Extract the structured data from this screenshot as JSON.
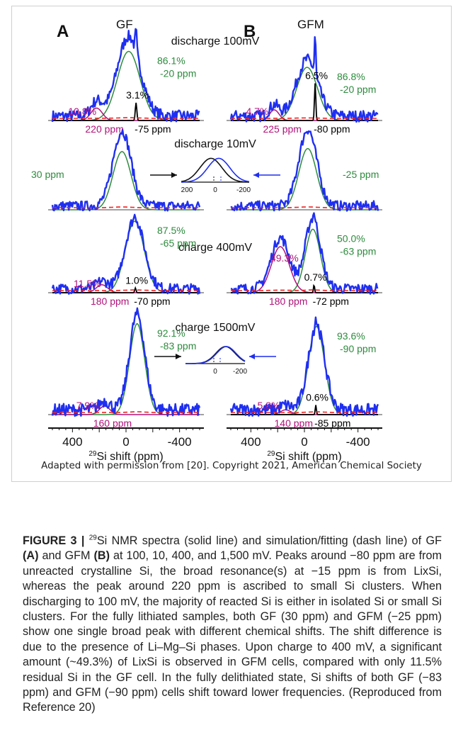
{
  "colors": {
    "experiment": "#1f2ff0",
    "fit_dash": "#ee2222",
    "lixsi_component": "#2e8b3e",
    "cluster_component": "#b0127a",
    "crystalline_component": "#000000",
    "caption_label": "#111111"
  },
  "figure": {
    "panel_a_label": "A",
    "panel_b_label": "B",
    "column_a_title": "GF",
    "column_b_title": "GFM",
    "inset_arrow_icon": "arrow-icon"
  },
  "chart_data": [
    {
      "type": "line",
      "panel": "A",
      "sample": "GF",
      "state": "discharge 100mV",
      "x_unit": "ppm",
      "xlim": [
        550,
        -550
      ],
      "components": [
        {
          "color": "lixsi",
          "center_ppm": -20,
          "width_ppm": 120,
          "relative_height": 0.78,
          "fraction_label": "86.1%",
          "shift_label": "-20 ppm"
        },
        {
          "color": "cluster",
          "center_ppm": 220,
          "width_ppm": 60,
          "relative_height": 0.14,
          "fraction_label": "10.8%",
          "shift_label": "220 ppm"
        },
        {
          "color": "crystalline",
          "center_ppm": -75,
          "width_ppm": 8,
          "relative_height": 0.2,
          "fraction_label": "3.1%",
          "shift_label": "-75 ppm"
        }
      ],
      "experiment_peak_height": 0.96
    },
    {
      "type": "line",
      "panel": "B",
      "sample": "GFM",
      "state": "discharge 100mV",
      "x_unit": "ppm",
      "xlim": [
        550,
        -550
      ],
      "components": [
        {
          "color": "lixsi",
          "center_ppm": -20,
          "width_ppm": 110,
          "relative_height": 0.6,
          "fraction_label": "86.8%",
          "shift_label": "-20 ppm"
        },
        {
          "color": "cluster",
          "center_ppm": 225,
          "width_ppm": 50,
          "relative_height": 0.12,
          "fraction_label": "4.7%",
          "shift_label": "225 ppm"
        },
        {
          "color": "crystalline",
          "center_ppm": -80,
          "width_ppm": 7,
          "relative_height": 0.42,
          "fraction_label": "6.5%",
          "shift_label": "-80 ppm"
        }
      ],
      "experiment_peak_height": 0.92
    },
    {
      "type": "line",
      "panel": "A",
      "sample": "GF",
      "state": "discharge 10mV",
      "x_unit": "ppm",
      "xlim": [
        550,
        -550
      ],
      "components": [
        {
          "color": "lixsi",
          "center_ppm": 30,
          "width_ppm": 95,
          "relative_height": 0.76,
          "fraction_label": "",
          "shift_label": "30 ppm"
        }
      ],
      "experiment_peak_height": 0.98
    },
    {
      "type": "line",
      "panel": "B",
      "sample": "GFM",
      "state": "discharge 10mV",
      "x_unit": "ppm",
      "xlim": [
        550,
        -550
      ],
      "components": [
        {
          "color": "lixsi",
          "center_ppm": -25,
          "width_ppm": 95,
          "relative_height": 0.8,
          "fraction_label": "",
          "shift_label": "-25 ppm"
        }
      ],
      "experiment_peak_height": 1.0
    },
    {
      "type": "line",
      "panel": "A",
      "sample": "GF",
      "state": "charge 400mV",
      "x_unit": "ppm",
      "xlim": [
        550,
        -550
      ],
      "components": [
        {
          "color": "lixsi",
          "center_ppm": -65,
          "width_ppm": 100,
          "relative_height": 0.9,
          "fraction_label": "87.5%",
          "shift_label": "-65 ppm"
        },
        {
          "color": "cluster",
          "center_ppm": 180,
          "width_ppm": 60,
          "relative_height": 0.1,
          "fraction_label": "11.5%",
          "shift_label": "180 ppm"
        },
        {
          "color": "crystalline",
          "center_ppm": -70,
          "width_ppm": 7,
          "relative_height": 0.06,
          "fraction_label": "1.0%",
          "shift_label": "-70 ppm"
        }
      ],
      "experiment_peak_height": 0.94
    },
    {
      "type": "line",
      "panel": "B",
      "sample": "GFM",
      "state": "charge 400mV",
      "x_unit": "ppm",
      "xlim": [
        550,
        -550
      ],
      "components": [
        {
          "color": "lixsi",
          "center_ppm": -63,
          "width_ppm": 80,
          "relative_height": 0.8,
          "fraction_label": "50.0%",
          "shift_label": "-63 ppm"
        },
        {
          "color": "cluster",
          "center_ppm": 180,
          "width_ppm": 95,
          "relative_height": 0.58,
          "fraction_label": "49.3%",
          "shift_label": "180 ppm"
        },
        {
          "color": "crystalline",
          "center_ppm": -72,
          "width_ppm": 6,
          "relative_height": 0.1,
          "fraction_label": "0.7%",
          "shift_label": "-72 ppm"
        }
      ],
      "experiment_peak_height": 0.98
    },
    {
      "type": "line",
      "panel": "A",
      "sample": "GF",
      "state": "charge 1500mV",
      "x_unit": "ppm",
      "xlim": [
        550,
        -550
      ],
      "components": [
        {
          "color": "lixsi",
          "center_ppm": -83,
          "width_ppm": 80,
          "relative_height": 0.95,
          "fraction_label": "92.1%",
          "shift_label": "-83 ppm"
        },
        {
          "color": "cluster",
          "center_ppm": 160,
          "width_ppm": 55,
          "relative_height": 0.09,
          "fraction_label": "7.9%",
          "shift_label": "160 ppm"
        }
      ],
      "experiment_peak_height": 1.0
    },
    {
      "type": "line",
      "panel": "B",
      "sample": "GFM",
      "state": "charge 1500mV",
      "x_unit": "ppm",
      "xlim": [
        550,
        -550
      ],
      "components": [
        {
          "color": "lixsi",
          "center_ppm": -90,
          "width_ppm": 85,
          "relative_height": 0.92,
          "fraction_label": "93.6%",
          "shift_label": "-90 ppm"
        },
        {
          "color": "cluster",
          "center_ppm": 140,
          "width_ppm": 55,
          "relative_height": 0.05,
          "fraction_label": "5.8%",
          "shift_label": "140 ppm"
        },
        {
          "color": "crystalline",
          "center_ppm": -85,
          "width_ppm": 6,
          "relative_height": 0.1,
          "fraction_label": "0.6%",
          "shift_label": "-85 ppm"
        }
      ],
      "experiment_peak_height": 0.98
    }
  ],
  "x_axis": {
    "tick_labels": [
      "400",
      "0",
      "-400"
    ],
    "tick_values": [
      400,
      0,
      -400
    ],
    "label_prefix": "29",
    "label_text": "Si shift (ppm)"
  },
  "insets": [
    {
      "state": "discharge 10mV",
      "tick_labels": [
        "200",
        "0",
        "-200"
      ],
      "tick_values": [
        200,
        0,
        -200
      ]
    },
    {
      "state": "charge 1500mV",
      "tick_labels": [
        "0",
        "-200"
      ],
      "tick_values": [
        0,
        -200
      ]
    }
  ],
  "credit": "Adapted with permission from [20]. Copyright 2021, American Chemical Society",
  "caption": {
    "label": "FIGURE 3 |",
    "sup": "29",
    "part1": "Si NMR spectra (solid line) and simulation/fitting (dash line) of GF ",
    "bold_a": "(A)",
    "part2": " and GFM ",
    "bold_b": "(B)",
    "part3": " at 100, 10, 400, and 1,500 mV. Peaks around −80 ppm are from unreacted crystalline Si, the broad resonance(s) at −15 ppm is from LixSi, whereas the peak around 220 ppm is ascribed to small Si clusters. When discharging to 100 mV, the majority of reacted Si is either in isolated Si or small Si clusters. For the fully lithiated samples, both GF (30 ppm) and GFM (−25 ppm) show one single broad peak with different chemical shifts. The shift difference is due to the presence of Li–Mg–Si phases. Upon charge to 400 mV, a significant amount (~49.3%) of LixSi is observed in GFM cells, compared with only 11.5% residual Si in the GF cell. In the fully delithiated state, Si shifts of both GF (−83 ppm) and GFM (−90 ppm) cells shift toward lower frequencies. (Reproduced from Reference 20)"
  }
}
